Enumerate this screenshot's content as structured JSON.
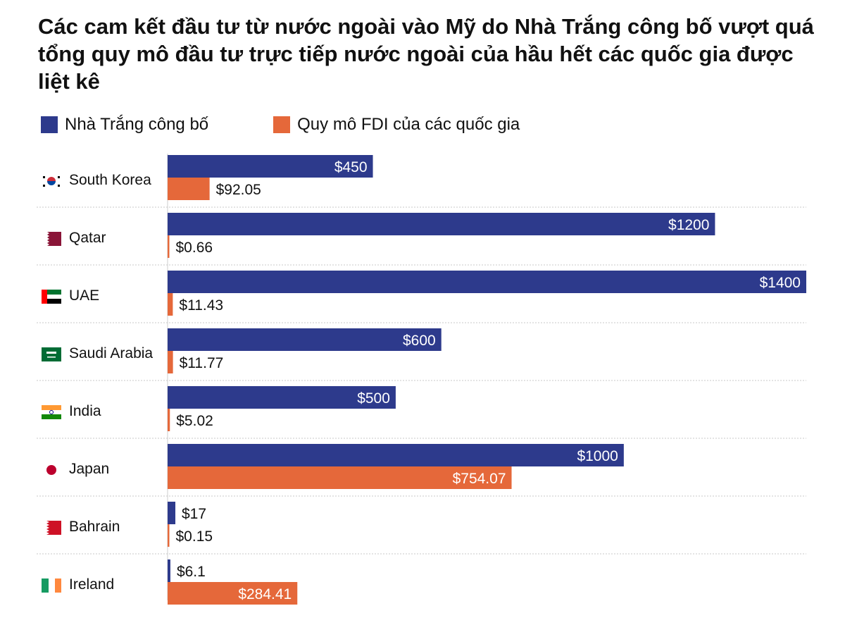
{
  "chart_data": {
    "type": "bar",
    "orientation": "horizontal",
    "title": "Các cam kết đầu tư từ nước ngoài vào Mỹ do Nhà Trắng công bố vượt quá tổng quy mô đầu tư trực tiếp nước ngoài của hầu hết các quốc gia được liệt kê",
    "categories": [
      "South Korea",
      "Qatar",
      "UAE",
      "Saudi Arabia",
      "India",
      "Japan",
      "Bahrain",
      "Ireland"
    ],
    "series": [
      {
        "name": "Nhà Trắng công bố",
        "color": "#2d3a8c",
        "values": [
          450,
          1200,
          1400,
          600,
          500,
          1000,
          17,
          6.1
        ],
        "labels": [
          "$450",
          "$1200",
          "$1400",
          "$600",
          "$500",
          "$1000",
          "$17",
          "$6.1"
        ]
      },
      {
        "name": "Quy mô FDI của các quốc gia",
        "color": "#e5683a",
        "values": [
          92.05,
          0.66,
          11.43,
          11.77,
          5.02,
          754.07,
          0.15,
          284.41
        ],
        "labels": [
          "$92.05",
          "$0.66",
          "$11.43",
          "$11.77",
          "$5.02",
          "$754.07",
          "$0.15",
          "$284.41"
        ]
      }
    ],
    "flags": [
      "korea-flag-icon",
      "qatar-flag-icon",
      "uae-flag-icon",
      "saudi-flag-icon",
      "india-flag-icon",
      "japan-flag-icon",
      "bahrain-flag-icon",
      "ireland-flag-icon"
    ],
    "xlim": [
      0,
      1400
    ],
    "grid": false,
    "legend_position": "top-left"
  }
}
